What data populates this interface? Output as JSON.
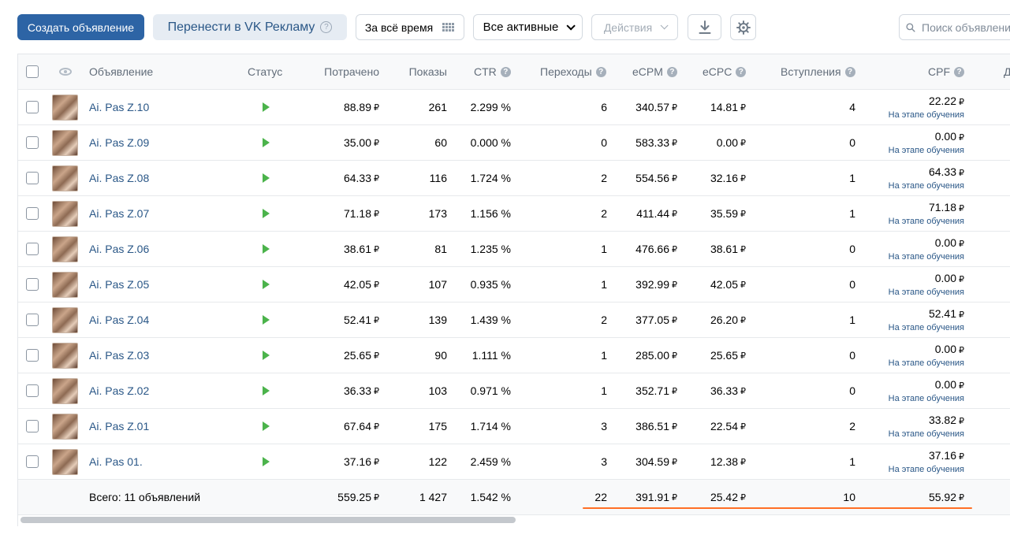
{
  "toolbar": {
    "create_label": "Создать объявление",
    "transfer_label": "Перенести в VK Рекламу",
    "help_glyph": "?",
    "period_label": "За всё время",
    "filter_label": "Все активные",
    "actions_label": "Действия",
    "search_placeholder": "Поиск объявлений"
  },
  "columns": {
    "name": "Объявление",
    "status": "Статус",
    "spent": "Потрачено",
    "impressions": "Показы",
    "ctr": "CTR",
    "clicks": "Переходы",
    "ecpm": "eCPM",
    "ecpc": "eCPC",
    "joins": "Вступления",
    "cpf": "CPF",
    "next": "Д"
  },
  "currency": "₽",
  "learning_label": "На этапе обучения",
  "ads": [
    {
      "name": "Ai. Pas Z.10",
      "spent": "88.89",
      "impressions": "261",
      "ctr": "2.299 %",
      "clicks": "6",
      "ecpm": "340.57",
      "ecpc": "14.81",
      "joins": "4",
      "cpf": "22.22"
    },
    {
      "name": "Ai. Pas Z.09",
      "spent": "35.00",
      "impressions": "60",
      "ctr": "0.000 %",
      "clicks": "0",
      "ecpm": "583.33",
      "ecpc": "0.00",
      "joins": "0",
      "cpf": "0.00"
    },
    {
      "name": "Ai. Pas Z.08",
      "spent": "64.33",
      "impressions": "116",
      "ctr": "1.724 %",
      "clicks": "2",
      "ecpm": "554.56",
      "ecpc": "32.16",
      "joins": "1",
      "cpf": "64.33"
    },
    {
      "name": "Ai. Pas Z.07",
      "spent": "71.18",
      "impressions": "173",
      "ctr": "1.156 %",
      "clicks": "2",
      "ecpm": "411.44",
      "ecpc": "35.59",
      "joins": "1",
      "cpf": "71.18"
    },
    {
      "name": "Ai. Pas Z.06",
      "spent": "38.61",
      "impressions": "81",
      "ctr": "1.235 %",
      "clicks": "1",
      "ecpm": "476.66",
      "ecpc": "38.61",
      "joins": "0",
      "cpf": "0.00"
    },
    {
      "name": "Ai. Pas Z.05",
      "spent": "42.05",
      "impressions": "107",
      "ctr": "0.935 %",
      "clicks": "1",
      "ecpm": "392.99",
      "ecpc": "42.05",
      "joins": "0",
      "cpf": "0.00"
    },
    {
      "name": "Ai. Pas Z.04",
      "spent": "52.41",
      "impressions": "139",
      "ctr": "1.439 %",
      "clicks": "2",
      "ecpm": "377.05",
      "ecpc": "26.20",
      "joins": "1",
      "cpf": "52.41"
    },
    {
      "name": "Ai. Pas Z.03",
      "spent": "25.65",
      "impressions": "90",
      "ctr": "1.111 %",
      "clicks": "1",
      "ecpm": "285.00",
      "ecpc": "25.65",
      "joins": "0",
      "cpf": "0.00"
    },
    {
      "name": "Ai. Pas Z.02",
      "spent": "36.33",
      "impressions": "103",
      "ctr": "0.971 %",
      "clicks": "1",
      "ecpm": "352.71",
      "ecpc": "36.33",
      "joins": "0",
      "cpf": "0.00"
    },
    {
      "name": "Ai. Pas Z.01",
      "spent": "67.64",
      "impressions": "175",
      "ctr": "1.714 %",
      "clicks": "3",
      "ecpm": "386.51",
      "ecpc": "22.54",
      "joins": "2",
      "cpf": "33.82"
    },
    {
      "name": "Ai. Pas 01.",
      "spent": "37.16",
      "impressions": "122",
      "ctr": "2.459 %",
      "clicks": "3",
      "ecpm": "304.59",
      "ecpc": "12.38",
      "joins": "1",
      "cpf": "37.16"
    }
  ],
  "total": {
    "label": "Всего: 11 объявлений",
    "spent": "559.25",
    "impressions": "1 427",
    "ctr": "1.542 %",
    "clicks": "22",
    "ecpm": "391.91",
    "ecpc": "25.42",
    "joins": "10",
    "cpf": "55.92"
  },
  "colors": {
    "primary": "#2d64a5",
    "link": "#2a5787",
    "status_active": "#4bb34b",
    "highlight_underline": "#ff6f25"
  },
  "icons": [
    "help-icon",
    "grid-icon",
    "chevron-down-icon",
    "download-icon",
    "gear-icon",
    "search-icon",
    "eye-icon",
    "play-icon"
  ]
}
